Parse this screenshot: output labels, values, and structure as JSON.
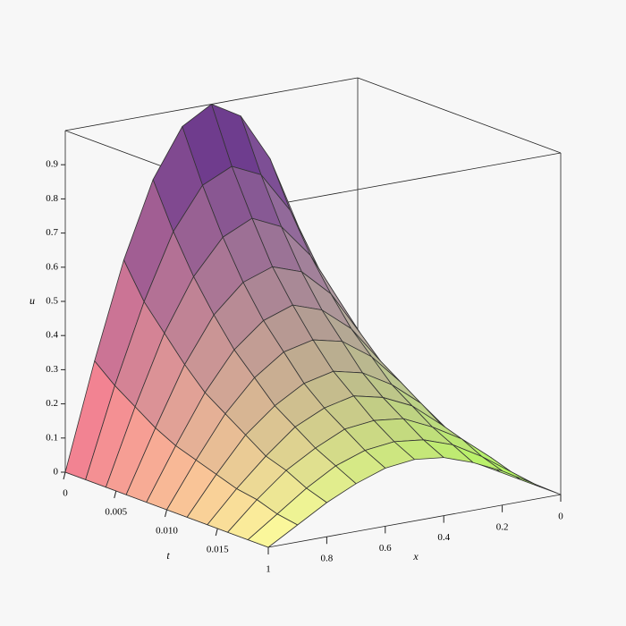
{
  "chart_data": {
    "type": "surface",
    "x_label": "x",
    "y_label": "t",
    "z_label": "u",
    "x": [
      0,
      0.1,
      0.2,
      0.3,
      0.4,
      0.5,
      0.6,
      0.7,
      0.8,
      0.9,
      1
    ],
    "y": [
      0,
      0.002,
      0.004,
      0.006,
      0.008,
      0.01,
      0.012,
      0.014,
      0.016,
      0.018,
      0.02
    ],
    "z": [
      [
        0,
        0.31,
        0.59,
        0.81,
        0.95,
        1,
        0.95,
        0.81,
        0.59,
        0.31,
        0
      ],
      [
        0,
        0.26,
        0.49,
        0.68,
        0.8,
        0.84,
        0.8,
        0.68,
        0.49,
        0.26,
        0
      ],
      [
        0,
        0.22,
        0.42,
        0.57,
        0.67,
        0.71,
        0.67,
        0.57,
        0.42,
        0.22,
        0
      ],
      [
        0,
        0.18,
        0.35,
        0.48,
        0.56,
        0.59,
        0.56,
        0.48,
        0.35,
        0.18,
        0
      ],
      [
        0,
        0.15,
        0.29,
        0.4,
        0.47,
        0.5,
        0.47,
        0.4,
        0.29,
        0.15,
        0
      ],
      [
        0,
        0.13,
        0.25,
        0.34,
        0.4,
        0.42,
        0.4,
        0.34,
        0.25,
        0.13,
        0
      ],
      [
        0,
        0.11,
        0.21,
        0.28,
        0.33,
        0.35,
        0.33,
        0.28,
        0.21,
        0.11,
        0
      ],
      [
        0,
        0.09,
        0.17,
        0.24,
        0.28,
        0.3,
        0.28,
        0.24,
        0.17,
        0.09,
        0
      ],
      [
        0,
        0.08,
        0.15,
        0.2,
        0.24,
        0.25,
        0.24,
        0.2,
        0.15,
        0.08,
        0
      ],
      [
        0,
        0.06,
        0.12,
        0.17,
        0.2,
        0.21,
        0.2,
        0.17,
        0.12,
        0.06,
        0
      ],
      [
        0,
        0.05,
        0.1,
        0.14,
        0.17,
        0.18,
        0.17,
        0.14,
        0.1,
        0.05,
        0
      ]
    ],
    "xlim": [
      0,
      1
    ],
    "ylim": [
      0,
      0.02
    ],
    "zlim": [
      0,
      1
    ],
    "xticks": [
      0,
      0.2,
      0.4,
      0.6,
      0.8,
      1
    ],
    "yticks": [
      0,
      0.005,
      {
        "value": 0.01,
        "label": "0.010"
      },
      0.015
    ],
    "zticks": [
      0,
      0.1,
      0.2,
      0.3,
      0.4,
      0.5,
      0.6,
      0.7,
      0.8,
      0.9
    ],
    "colorscale": [
      "#d8d8d8",
      "#a8ff50",
      "#ff7f8f",
      "#ffffa0",
      "#5a2a88"
    ]
  }
}
